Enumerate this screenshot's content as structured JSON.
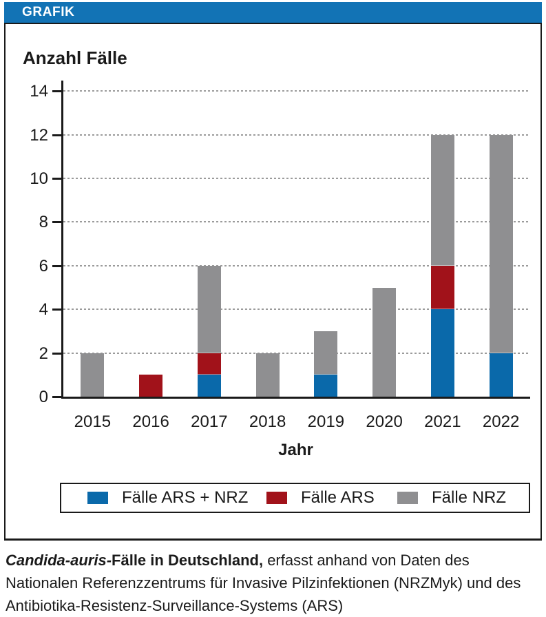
{
  "header": {
    "label": "GRAFIK"
  },
  "colors": {
    "header_bg": "#1273b5",
    "ink": "#1a1a1a",
    "grid": "#9b9b9b"
  },
  "chart_data": {
    "type": "bar",
    "stacked": true,
    "categories": [
      "2015",
      "2016",
      "2017",
      "2018",
      "2019",
      "2020",
      "2021",
      "2022"
    ],
    "series": [
      {
        "name": "Fälle ARS + NRZ",
        "color": "#0a69aa",
        "values": [
          0,
          0,
          1,
          0,
          1,
          0,
          4,
          2
        ]
      },
      {
        "name": "Fälle ARS",
        "color": "#a1121a",
        "values": [
          0,
          1,
          1,
          0,
          0,
          0,
          2,
          0
        ]
      },
      {
        "name": "Fälle NRZ",
        "color": "#8f8f91",
        "values": [
          2,
          0,
          4,
          2,
          2,
          5,
          6,
          10
        ]
      }
    ],
    "totals": [
      2,
      1,
      6,
      2,
      3,
      5,
      12,
      12
    ],
    "ylabel": "Anzahl Fälle",
    "xlabel": "Jahr",
    "ylim": [
      0,
      14
    ],
    "yticks": [
      0,
      2,
      4,
      6,
      8,
      10,
      12,
      14
    ],
    "grid": "dotted-horizontal",
    "legend_position": "bottom"
  },
  "caption": {
    "line1_italic_bold": "Candida-auris-",
    "line1_bold": "Fälle in Deutschland,",
    "line1_rest": " erfasst anhand von Daten des",
    "line2": "Nationalen Referenzzentrums für Invasive Pilzinfektionen (NRZMyk) und des",
    "line3": "Antibiotika-Resistenz-Surveillance-Systems (ARS)"
  }
}
